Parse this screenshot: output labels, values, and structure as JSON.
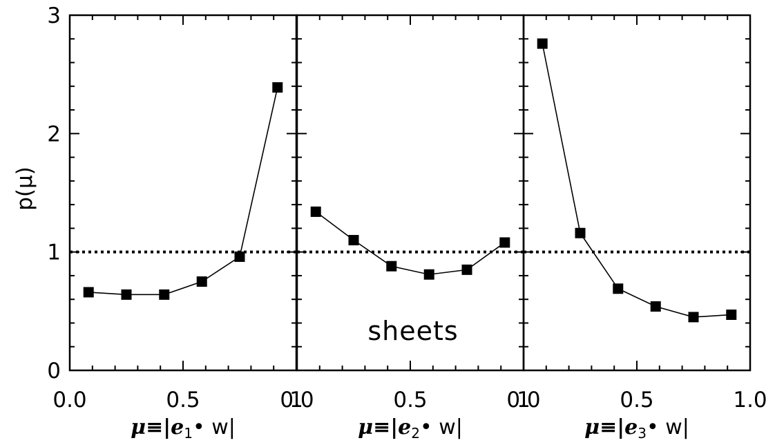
{
  "chart_data": [
    {
      "type": "line",
      "panel": 1,
      "ylabel": "p(μ)",
      "xlabel": {
        "prefix": "μ≡|e",
        "sub": "1",
        "suffix": "• w|"
      },
      "xlim": [
        0.0,
        1.0
      ],
      "ylim": [
        0,
        3
      ],
      "xticks": [
        "0.0",
        "0.5",
        "1"
      ],
      "yticks": [
        "0",
        "1",
        "2",
        "3"
      ],
      "reference_line": {
        "y": 1,
        "style": "dotted"
      },
      "x": [
        0.083,
        0.25,
        0.417,
        0.583,
        0.75,
        0.917
      ],
      "y": [
        0.66,
        0.64,
        0.64,
        0.75,
        0.96,
        2.39
      ],
      "annotation": ""
    },
    {
      "type": "line",
      "panel": 2,
      "xlabel": {
        "prefix": "μ≡|e",
        "sub": "2",
        "suffix": "• w|"
      },
      "xlim": [
        0.0,
        1.0
      ],
      "ylim": [
        0,
        3
      ],
      "xticks": [
        "0.0",
        "0.5",
        "1"
      ],
      "reference_line": {
        "y": 1,
        "style": "dotted"
      },
      "x": [
        0.083,
        0.25,
        0.417,
        0.583,
        0.75,
        0.917
      ],
      "y": [
        1.34,
        1.1,
        0.88,
        0.81,
        0.85,
        1.08
      ],
      "annotation": "sheets"
    },
    {
      "type": "line",
      "panel": 3,
      "xlabel": {
        "prefix": "μ≡|e",
        "sub": "3",
        "suffix": "• w|"
      },
      "xlim": [
        0.0,
        1.0
      ],
      "ylim": [
        0,
        3
      ],
      "xticks": [
        "0.0",
        "0.5",
        "1.0"
      ],
      "reference_line": {
        "y": 1,
        "style": "dotted"
      },
      "x": [
        0.083,
        0.25,
        0.417,
        0.583,
        0.75,
        0.917
      ],
      "y": [
        2.76,
        1.16,
        0.69,
        0.54,
        0.45,
        0.47
      ],
      "annotation": ""
    }
  ]
}
